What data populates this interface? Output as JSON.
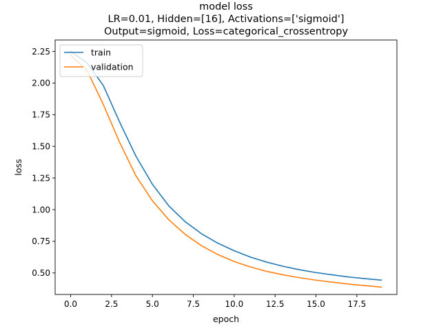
{
  "chart_data": {
    "type": "line",
    "title_lines": [
      "model loss",
      "LR=0.01, Hidden=[16], Activations=['sigmoid']",
      "Output=sigmoid, Loss=categorical_crossentropy"
    ],
    "xlabel": "epoch",
    "ylabel": "loss",
    "xlim": [
      -0.95,
      19.95
    ],
    "ylim": [
      0.33,
      2.34
    ],
    "xticks": [
      "0.0",
      "2.5",
      "5.0",
      "7.5",
      "10.0",
      "12.5",
      "15.0",
      "17.5"
    ],
    "yticks": [
      "0.50",
      "0.75",
      "1.00",
      "1.25",
      "1.50",
      "1.75",
      "2.00",
      "2.25"
    ],
    "grid": false,
    "legend_position": "upper-left",
    "x": [
      0,
      1,
      2,
      3,
      4,
      5,
      6,
      7,
      8,
      9,
      10,
      11,
      12,
      13,
      14,
      15,
      16,
      17,
      18,
      19
    ],
    "series": [
      {
        "name": "train",
        "color": "#1f77b4",
        "values": [
          2.25,
          2.16,
          1.98,
          1.69,
          1.42,
          1.2,
          1.03,
          0.905,
          0.81,
          0.735,
          0.675,
          0.625,
          0.585,
          0.552,
          0.525,
          0.503,
          0.485,
          0.468,
          0.455,
          0.443
        ]
      },
      {
        "name": "validation",
        "color": "#ff7f0e",
        "values": [
          2.22,
          2.1,
          1.83,
          1.53,
          1.265,
          1.07,
          0.92,
          0.805,
          0.715,
          0.645,
          0.59,
          0.547,
          0.512,
          0.485,
          0.462,
          0.443,
          0.427,
          0.412,
          0.4,
          0.388
        ]
      }
    ]
  }
}
